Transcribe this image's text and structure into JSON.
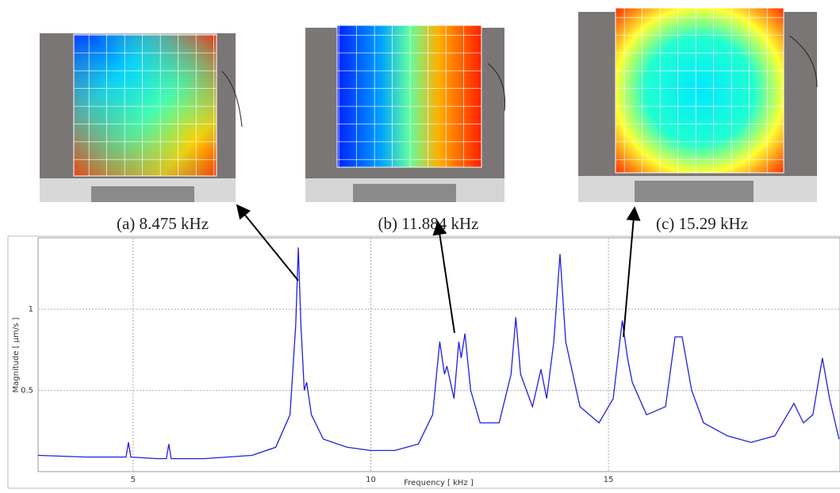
{
  "chart_data": {
    "type": "line",
    "annotations": [
      "(a) 8.475 kHz",
      "(b) 11.884 kHz",
      "(c) 15.29 kHz"
    ],
    "xlabel": "Frequency [ kHz ]",
    "ylabel": "Magnitude [ µm/s ]",
    "color": "#1f1fe0",
    "x": [
      3.0,
      4.0,
      4.85,
      4.9,
      4.95,
      5.5,
      5.7,
      5.75,
      5.8,
      6.5,
      7.5,
      8.0,
      8.3,
      8.42,
      8.475,
      8.53,
      8.6,
      8.65,
      8.75,
      9.0,
      9.5,
      10.0,
      10.5,
      11.0,
      11.3,
      11.45,
      11.55,
      11.6,
      11.75,
      11.85,
      11.9,
      11.98,
      12.1,
      12.3,
      12.7,
      12.95,
      13.05,
      13.15,
      13.4,
      13.58,
      13.7,
      13.85,
      13.98,
      14.1,
      14.4,
      14.8,
      15.1,
      15.29,
      15.4,
      15.5,
      15.8,
      16.2,
      16.4,
      16.55,
      16.75,
      17.0,
      17.5,
      18.0,
      18.5,
      18.9,
      19.1,
      19.3,
      19.5,
      19.65,
      19.85
    ],
    "values": [
      0.1,
      0.09,
      0.09,
      0.18,
      0.09,
      0.08,
      0.08,
      0.17,
      0.08,
      0.08,
      0.1,
      0.15,
      0.35,
      0.9,
      1.38,
      0.9,
      0.5,
      0.55,
      0.35,
      0.2,
      0.15,
      0.13,
      0.13,
      0.17,
      0.35,
      0.8,
      0.6,
      0.65,
      0.45,
      0.8,
      0.7,
      0.85,
      0.5,
      0.3,
      0.3,
      0.6,
      0.95,
      0.6,
      0.4,
      0.63,
      0.45,
      0.8,
      1.34,
      0.8,
      0.4,
      0.3,
      0.45,
      0.93,
      0.7,
      0.55,
      0.35,
      0.4,
      0.83,
      0.83,
      0.5,
      0.3,
      0.22,
      0.18,
      0.22,
      0.42,
      0.3,
      0.35,
      0.7,
      0.45,
      0.2
    ],
    "xlim": [
      3,
      19.87
    ],
    "ylim": [
      0,
      1.44
    ],
    "xticks": [
      5,
      10,
      15
    ],
    "yticks": [
      0.5,
      1
    ],
    "grid": true
  }
}
